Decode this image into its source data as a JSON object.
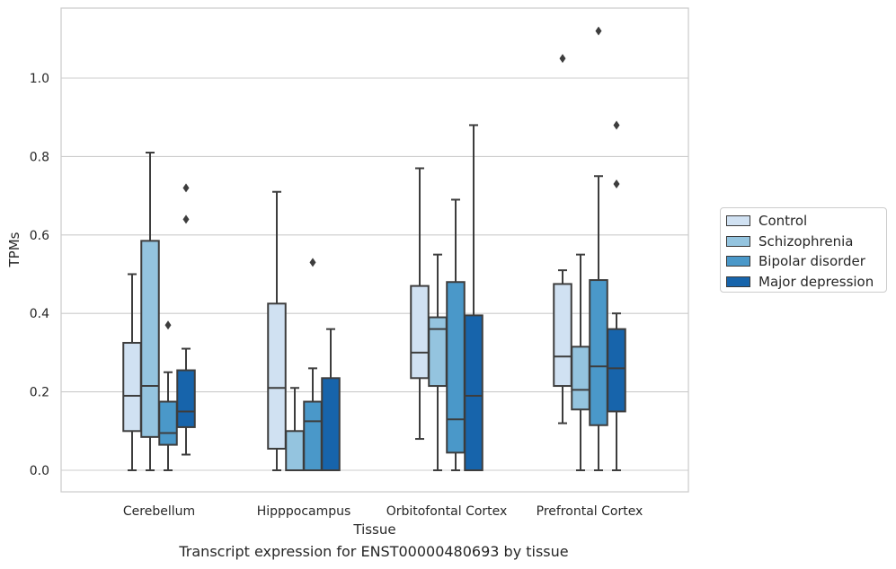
{
  "chart_data": {
    "type": "box",
    "title": "Transcript expression for ENST00000480693 by tissue",
    "xlabel": "Tissue",
    "ylabel": "TPMs",
    "ylim": [
      -0.055,
      1.18
    ],
    "yticks": [
      0.0,
      0.2,
      0.4,
      0.6,
      0.8,
      1.0
    ],
    "ytick_labels": [
      "0.0",
      "0.2",
      "0.4",
      "0.6",
      "0.8",
      "1.0"
    ],
    "categories": [
      "Cerebellum",
      "Hipppocampus",
      "Orbitofontal Cortex",
      "Prefrontal Cortex"
    ],
    "grid": true,
    "legend_position": "right",
    "series": [
      {
        "name": "Control",
        "color": "#d0e1f2",
        "boxes": [
          {
            "whislo": 0.0,
            "q1": 0.1,
            "med": 0.19,
            "q3": 0.325,
            "whishi": 0.5,
            "fliers": []
          },
          {
            "whislo": 0.0,
            "q1": 0.055,
            "med": 0.21,
            "q3": 0.425,
            "whishi": 0.71,
            "fliers": []
          },
          {
            "whislo": 0.08,
            "q1": 0.235,
            "med": 0.3,
            "q3": 0.47,
            "whishi": 0.77,
            "fliers": []
          },
          {
            "whislo": 0.12,
            "q1": 0.215,
            "med": 0.29,
            "q3": 0.475,
            "whishi": 0.51,
            "fliers": [
              1.05
            ]
          }
        ]
      },
      {
        "name": "Schizophrenia",
        "color": "#94c4df",
        "boxes": [
          {
            "whislo": 0.0,
            "q1": 0.085,
            "med": 0.215,
            "q3": 0.585,
            "whishi": 0.81,
            "fliers": []
          },
          {
            "whislo": 0.0,
            "q1": 0.0,
            "med": 0.0,
            "q3": 0.1,
            "whishi": 0.21,
            "fliers": []
          },
          {
            "whislo": 0.0,
            "q1": 0.215,
            "med": 0.36,
            "q3": 0.39,
            "whishi": 0.55,
            "fliers": []
          },
          {
            "whislo": 0.0,
            "q1": 0.155,
            "med": 0.205,
            "q3": 0.315,
            "whishi": 0.55,
            "fliers": []
          }
        ]
      },
      {
        "name": "Bipolar disorder",
        "color": "#4a98c9",
        "boxes": [
          {
            "whislo": 0.0,
            "q1": 0.065,
            "med": 0.095,
            "q3": 0.175,
            "whishi": 0.25,
            "fliers": [
              0.37
            ]
          },
          {
            "whislo": 0.0,
            "q1": 0.0,
            "med": 0.125,
            "q3": 0.175,
            "whishi": 0.26,
            "fliers": [
              0.53
            ]
          },
          {
            "whislo": 0.0,
            "q1": 0.045,
            "med": 0.13,
            "q3": 0.48,
            "whishi": 0.69,
            "fliers": []
          },
          {
            "whislo": 0.0,
            "q1": 0.115,
            "med": 0.265,
            "q3": 0.485,
            "whishi": 0.75,
            "fliers": [
              1.12
            ]
          }
        ]
      },
      {
        "name": "Major depression",
        "color": "#1764ab",
        "boxes": [
          {
            "whislo": 0.04,
            "q1": 0.11,
            "med": 0.15,
            "q3": 0.255,
            "whishi": 0.31,
            "fliers": [
              0.64,
              0.72
            ]
          },
          {
            "whislo": 0.0,
            "q1": 0.0,
            "med": 0.0,
            "q3": 0.235,
            "whishi": 0.36,
            "fliers": []
          },
          {
            "whislo": 0.0,
            "q1": 0.0,
            "med": 0.19,
            "q3": 0.395,
            "whishi": 0.88,
            "fliers": []
          },
          {
            "whislo": 0.0,
            "q1": 0.15,
            "med": 0.26,
            "q3": 0.36,
            "whishi": 0.4,
            "fliers": [
              0.73,
              0.88
            ]
          }
        ]
      }
    ]
  }
}
